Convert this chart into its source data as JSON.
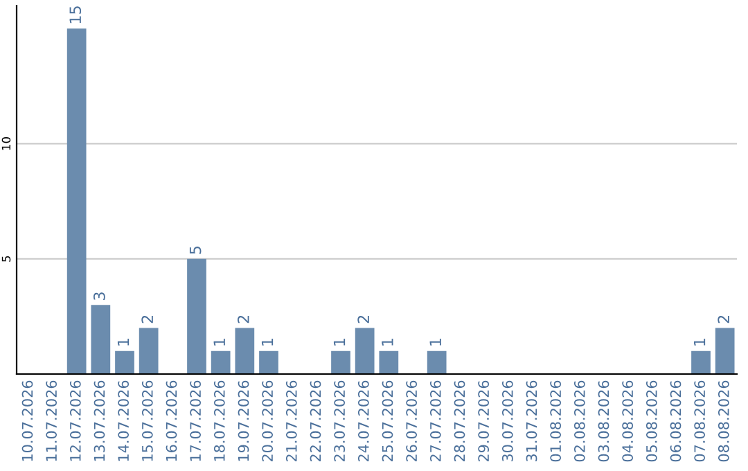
{
  "chart_data": {
    "type": "bar",
    "categories": [
      "10.07.2026",
      "11.07.2026",
      "12.07.2026",
      "13.07.2026",
      "14.07.2026",
      "15.07.2026",
      "16.07.2026",
      "17.07.2026",
      "18.07.2026",
      "19.07.2026",
      "20.07.2026",
      "21.07.2026",
      "22.07.2026",
      "23.07.2026",
      "24.07.2026",
      "25.07.2026",
      "26.07.2026",
      "27.07.2026",
      "28.07.2026",
      "29.07.2026",
      "30.07.2026",
      "31.07.2026",
      "01.08.2026",
      "02.08.2026",
      "03.08.2026",
      "04.08.2026",
      "05.08.2026",
      "06.08.2026",
      "07.08.2026",
      "08.08.2026"
    ],
    "values": [
      0,
      0,
      15,
      3,
      1,
      2,
      0,
      5,
      1,
      2,
      1,
      0,
      0,
      1,
      2,
      1,
      0,
      1,
      0,
      0,
      0,
      0,
      0,
      0,
      0,
      0,
      0,
      0,
      1,
      2
    ],
    "value_labels": [
      null,
      null,
      "15",
      "3",
      "1",
      "2",
      null,
      "5",
      "1",
      "2",
      "1",
      null,
      null,
      "1",
      "2",
      "1",
      null,
      "1",
      null,
      null,
      null,
      null,
      null,
      null,
      null,
      null,
      null,
      null,
      "1",
      "2"
    ],
    "color": "#6b8cae",
    "ylim": [
      0,
      16
    ],
    "yticks": [
      5,
      10
    ],
    "grid": "y"
  }
}
